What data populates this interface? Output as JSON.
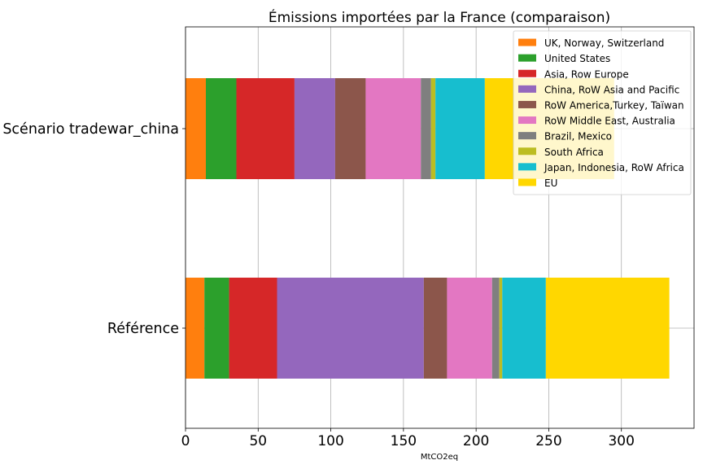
{
  "chart_data": {
    "type": "bar",
    "orientation": "horizontal",
    "stacked": true,
    "title": "Émissions importées par la France (comparaison)",
    "xlabel": "MtCO2eq",
    "ylabel": "",
    "xlim": [
      0,
      350
    ],
    "xticks": [
      0,
      50,
      100,
      150,
      200,
      250,
      300
    ],
    "grid": true,
    "legend_position": "top-right",
    "categories": [
      "Scénario tradewar_china",
      "Référence"
    ],
    "series": [
      {
        "name": "UK, Norway, Switzerland",
        "color": "#ff7f0e",
        "values": [
          14,
          13
        ]
      },
      {
        "name": "United States",
        "color": "#2ca02c",
        "values": [
          21,
          17
        ]
      },
      {
        "name": "Asia, Row Europe",
        "color": "#d62728",
        "values": [
          40,
          33
        ]
      },
      {
        "name": "China, RoW Asia and Pacific",
        "color": "#9467bd",
        "values": [
          28,
          101
        ]
      },
      {
        "name": "RoW America,Turkey, Taïwan",
        "color": "#8c564b",
        "values": [
          21,
          16
        ]
      },
      {
        "name": "RoW Middle East, Australia",
        "color": "#e377c2",
        "values": [
          38,
          31
        ]
      },
      {
        "name": "Brazil, Mexico",
        "color": "#7f7f7f",
        "values": [
          7,
          5
        ]
      },
      {
        "name": "South Africa",
        "color": "#bcbd22",
        "values": [
          3,
          2
        ]
      },
      {
        "name": "Japan, Indonesia, RoW Africa",
        "color": "#17becf",
        "values": [
          34,
          30
        ]
      },
      {
        "name": "EU",
        "color": "#ffd700",
        "values": [
          89,
          85
        ]
      }
    ]
  }
}
